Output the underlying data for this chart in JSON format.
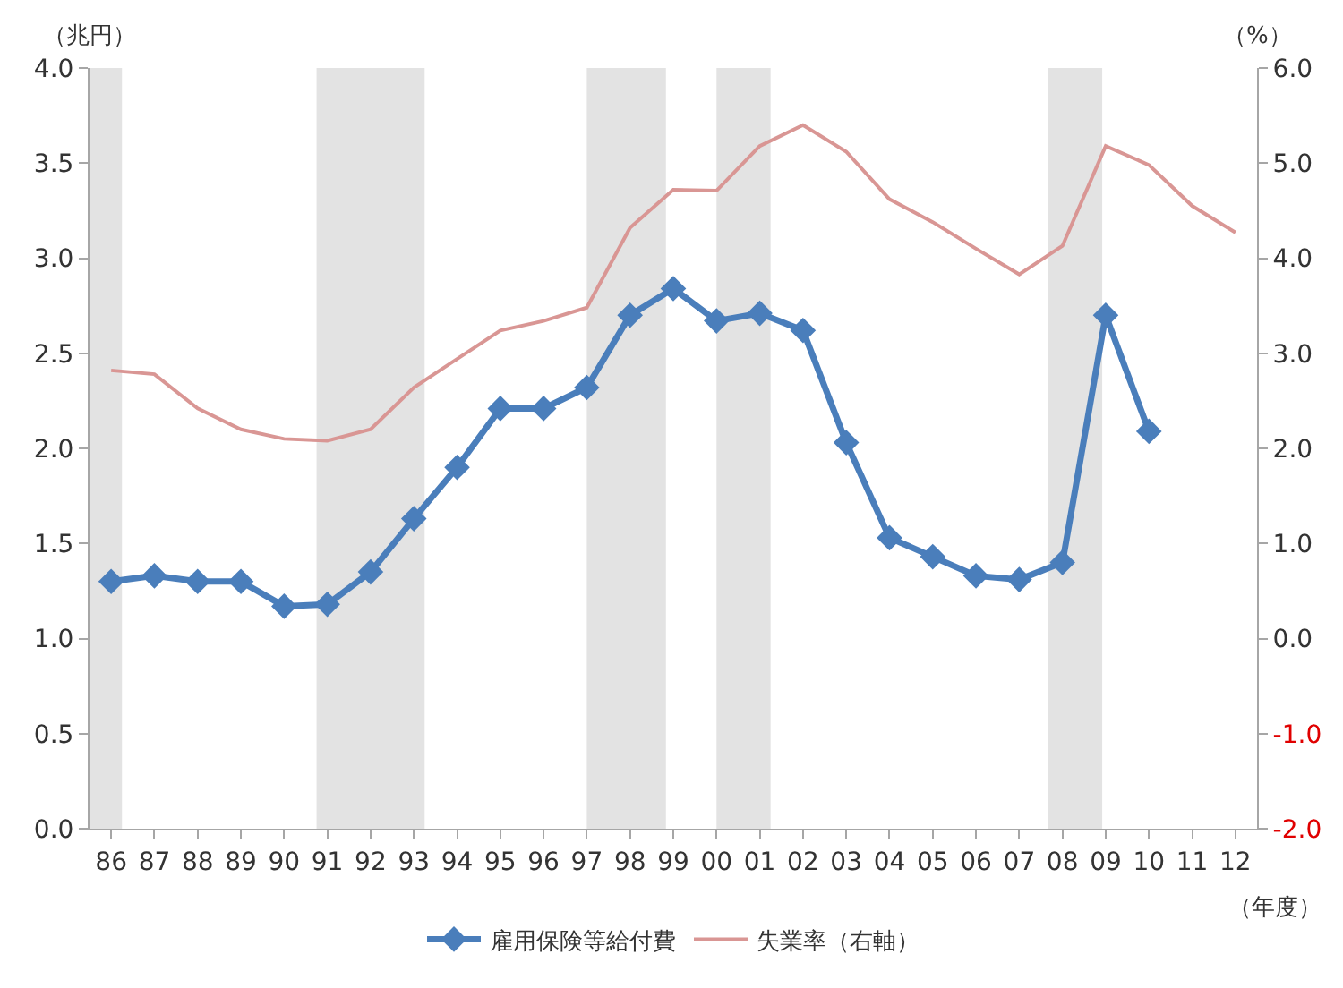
{
  "chart_data": {
    "type": "line",
    "ylabel": "（兆円）",
    "y2label": "（%）",
    "xlabel": "（年度）",
    "x": [
      1986,
      1987,
      1988,
      1989,
      1990,
      1991,
      1992,
      1993,
      1994,
      1995,
      1996,
      1997,
      1998,
      1999,
      2000,
      2001,
      2002,
      2003,
      2004,
      2005,
      2006,
      2007,
      2008,
      2009,
      2010,
      2011,
      2012
    ],
    "xlim": [
      1985.5,
      2012.5
    ],
    "xticks": [
      {
        "value": 1986,
        "label": "86"
      },
      {
        "value": 1987,
        "label": "87"
      },
      {
        "value": 1988,
        "label": "88"
      },
      {
        "value": 1989,
        "label": "89"
      },
      {
        "value": 1990,
        "label": "90"
      },
      {
        "value": 1991,
        "label": "91"
      },
      {
        "value": 1992,
        "label": "92"
      },
      {
        "value": 1993,
        "label": "93"
      },
      {
        "value": 1994,
        "label": "94"
      },
      {
        "value": 1995,
        "label": "95"
      },
      {
        "value": 1996,
        "label": "96"
      },
      {
        "value": 1997,
        "label": "97"
      },
      {
        "value": 1998,
        "label": "98"
      },
      {
        "value": 1999,
        "label": "99"
      },
      {
        "value": 2000,
        "label": "00"
      },
      {
        "value": 2001,
        "label": "01"
      },
      {
        "value": 2002,
        "label": "02"
      },
      {
        "value": 2003,
        "label": "03"
      },
      {
        "value": 2004,
        "label": "04"
      },
      {
        "value": 2005,
        "label": "05"
      },
      {
        "value": 2006,
        "label": "06"
      },
      {
        "value": 2007,
        "label": "07"
      },
      {
        "value": 2008,
        "label": "08"
      },
      {
        "value": 2009,
        "label": "09"
      },
      {
        "value": 2010,
        "label": "10"
      },
      {
        "value": 2011,
        "label": "11"
      },
      {
        "value": 2012,
        "label": "12"
      }
    ],
    "ylim": [
      0,
      4
    ],
    "yticks": [
      {
        "value": 0,
        "label": "0.0"
      },
      {
        "value": 0.5,
        "label": "0.5"
      },
      {
        "value": 1,
        "label": "1.0"
      },
      {
        "value": 1.5,
        "label": "1.5"
      },
      {
        "value": 2,
        "label": "2.0"
      },
      {
        "value": 2.5,
        "label": "2.5"
      },
      {
        "value": 3,
        "label": "3.0"
      },
      {
        "value": 3.5,
        "label": "3.5"
      },
      {
        "value": 4,
        "label": "4.0"
      }
    ],
    "y2lim": [
      -2,
      6
    ],
    "y2ticks": [
      {
        "value": -2,
        "label": "-2.0"
      },
      {
        "value": -1,
        "label": "-1.0"
      },
      {
        "value": 0,
        "label": "0.0"
      },
      {
        "value": 1,
        "label": "1.0"
      },
      {
        "value": 2,
        "label": "2.0"
      },
      {
        "value": 3,
        "label": "3.0"
      },
      {
        "value": 4,
        "label": "4.0"
      },
      {
        "value": 5,
        "label": "5.0"
      },
      {
        "value": 6,
        "label": "6.0"
      }
    ],
    "series": [
      {
        "name": "雇用保険等給付費",
        "color": "#4a7ebb",
        "marker": "diamond",
        "values": [
          1.3,
          1.33,
          1.3,
          1.3,
          1.17,
          1.18,
          1.35,
          1.63,
          1.9,
          2.21,
          2.21,
          2.32,
          2.7,
          2.84,
          2.67,
          2.71,
          2.62,
          2.03,
          1.53,
          1.43,
          1.33,
          1.31,
          1.4,
          2.7,
          2.09,
          null,
          null
        ]
      },
      {
        "name": "失業率（右軸）",
        "color": "#d99694",
        "marker": "none",
        "axis": "y2",
        "values": [
          2.82,
          2.78,
          2.42,
          2.2,
          2.1,
          2.08,
          2.2,
          2.64,
          2.94,
          3.24,
          3.34,
          3.48,
          4.32,
          4.72,
          4.71,
          5.18,
          5.4,
          5.12,
          4.62,
          4.38,
          4.1,
          3.83,
          4.13,
          5.18,
          4.98,
          4.55,
          4.27
        ]
      }
    ],
    "bands": [
      {
        "axis": "x",
        "from": 1985.5,
        "to": 1986.25,
        "color": "#e3e3e3"
      },
      {
        "axis": "x",
        "from": 1990.75,
        "to": 1993.25,
        "color": "#e3e3e3"
      },
      {
        "axis": "x",
        "from": 1997,
        "to": 1998.83,
        "color": "#e3e3e3"
      },
      {
        "axis": "x",
        "from": 2000,
        "to": 2001.25,
        "color": "#e3e3e3"
      },
      {
        "axis": "x",
        "from": 2007.67,
        "to": 2008.92,
        "color": "#e3e3e3"
      }
    ],
    "grid": false,
    "legend": "bottom"
  }
}
